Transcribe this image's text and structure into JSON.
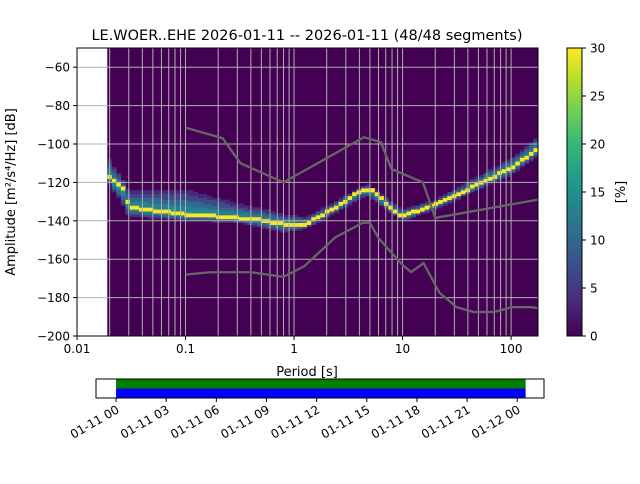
{
  "chart_data": {
    "type": "heatmap",
    "title": "LE.WOER..EHE   2026-01-11 -- 2026-01-11  (48/48 segments)",
    "xlabel": "Period [s]",
    "ylabel": "Amplitude [m²/s⁴/Hz] [dB]",
    "xscale": "log",
    "xlim": [
      0.01,
      177
    ],
    "ylim": [
      -200,
      -50
    ],
    "xticks": [
      {
        "v": 0.01,
        "label": "0.01"
      },
      {
        "v": 0.1,
        "label": "0.1"
      },
      {
        "v": 1,
        "label": "1"
      },
      {
        "v": 10,
        "label": "10"
      },
      {
        "v": 100,
        "label": "100"
      }
    ],
    "yticks": [
      {
        "v": -60,
        "label": "−60"
      },
      {
        "v": -80,
        "label": "−80"
      },
      {
        "v": -100,
        "label": "−100"
      },
      {
        "v": -120,
        "label": "−120"
      },
      {
        "v": -140,
        "label": "−140"
      },
      {
        "v": -160,
        "label": "−160"
      },
      {
        "v": -180,
        "label": "−180"
      },
      {
        "v": -200,
        "label": "−200"
      }
    ],
    "data_period_min": 0.019,
    "mode_curve": [
      [
        0.019,
        -116
      ],
      [
        0.022,
        -120
      ],
      [
        0.027,
        -124
      ],
      [
        0.03,
        -133
      ],
      [
        0.05,
        -135
      ],
      [
        0.1,
        -137
      ],
      [
        0.2,
        -138
      ],
      [
        0.5,
        -140
      ],
      [
        0.8,
        -142
      ],
      [
        1,
        -143
      ],
      [
        1.3,
        -142
      ],
      [
        1.6,
        -139
      ],
      [
        2.5,
        -133
      ],
      [
        4,
        -125
      ],
      [
        4.7,
        -124
      ],
      [
        5.5,
        -125
      ],
      [
        7,
        -131
      ],
      [
        9,
        -137
      ],
      [
        10,
        -138
      ],
      [
        14,
        -135
      ],
      [
        20,
        -132
      ],
      [
        40,
        -124
      ],
      [
        100,
        -113
      ],
      [
        150,
        -106
      ],
      [
        177,
        -103
      ]
    ],
    "spread_upper": [
      [
        0.019,
        -106
      ],
      [
        0.03,
        -124
      ],
      [
        0.1,
        -123
      ],
      [
        0.3,
        -131
      ],
      [
        0.8,
        -137
      ],
      [
        1.3,
        -139
      ],
      [
        4.7,
        -122
      ],
      [
        10,
        -135
      ],
      [
        20,
        -130
      ],
      [
        100,
        -108
      ],
      [
        177,
        -96
      ]
    ],
    "spread_lower": [
      [
        0.019,
        -119
      ],
      [
        0.03,
        -138
      ],
      [
        0.1,
        -140
      ],
      [
        0.3,
        -141
      ],
      [
        0.8,
        -146
      ],
      [
        1.3,
        -144
      ],
      [
        4.7,
        -127
      ],
      [
        10,
        -140
      ],
      [
        20,
        -134
      ],
      [
        100,
        -116
      ],
      [
        177,
        -106
      ]
    ],
    "nhnm": [
      [
        0.1,
        -91.5
      ],
      [
        0.22,
        -97
      ],
      [
        0.32,
        -110
      ],
      [
        0.8,
        -120
      ],
      [
        4.4,
        -96.5
      ],
      [
        6.3,
        -99
      ],
      [
        7.9,
        -113
      ],
      [
        15.4,
        -120
      ],
      [
        20,
        -138.5
      ],
      [
        177,
        -129
      ]
    ],
    "nlnm": [
      [
        0.1,
        -168
      ],
      [
        0.17,
        -166.8
      ],
      [
        0.4,
        -166.8
      ],
      [
        0.8,
        -169.2
      ],
      [
        1.24,
        -163.7
      ],
      [
        2.4,
        -148.6
      ],
      [
        4.3,
        -141
      ],
      [
        5,
        -141
      ],
      [
        6,
        -149
      ],
      [
        10,
        -163
      ],
      [
        12,
        -166.7
      ],
      [
        15.6,
        -162
      ],
      [
        21.9,
        -177.5
      ],
      [
        31.6,
        -185
      ],
      [
        45,
        -187.5
      ],
      [
        70,
        -187.5
      ],
      [
        101,
        -185
      ],
      [
        154,
        -185
      ],
      [
        177,
        -185.5
      ]
    ],
    "colorbar": {
      "label": "[%]",
      "range": [
        0,
        30
      ],
      "ticks": [
        "0",
        "5",
        "10",
        "15",
        "20",
        "25",
        "30"
      ],
      "colormap": "viridis"
    },
    "timeline": {
      "tick_labels": [
        "01-11 00",
        "01-11 03",
        "01-11 06",
        "01-11 09",
        "01-11 12",
        "01-11 15",
        "01-11 18",
        "01-11 21",
        "01-12 00"
      ],
      "coverage_start_hours": 0,
      "coverage_end_hours": 24.5,
      "axis_range_hours": [
        -1.2,
        25.6
      ],
      "colors": {
        "top": "#008000",
        "bottom": "#0000ff"
      }
    }
  }
}
